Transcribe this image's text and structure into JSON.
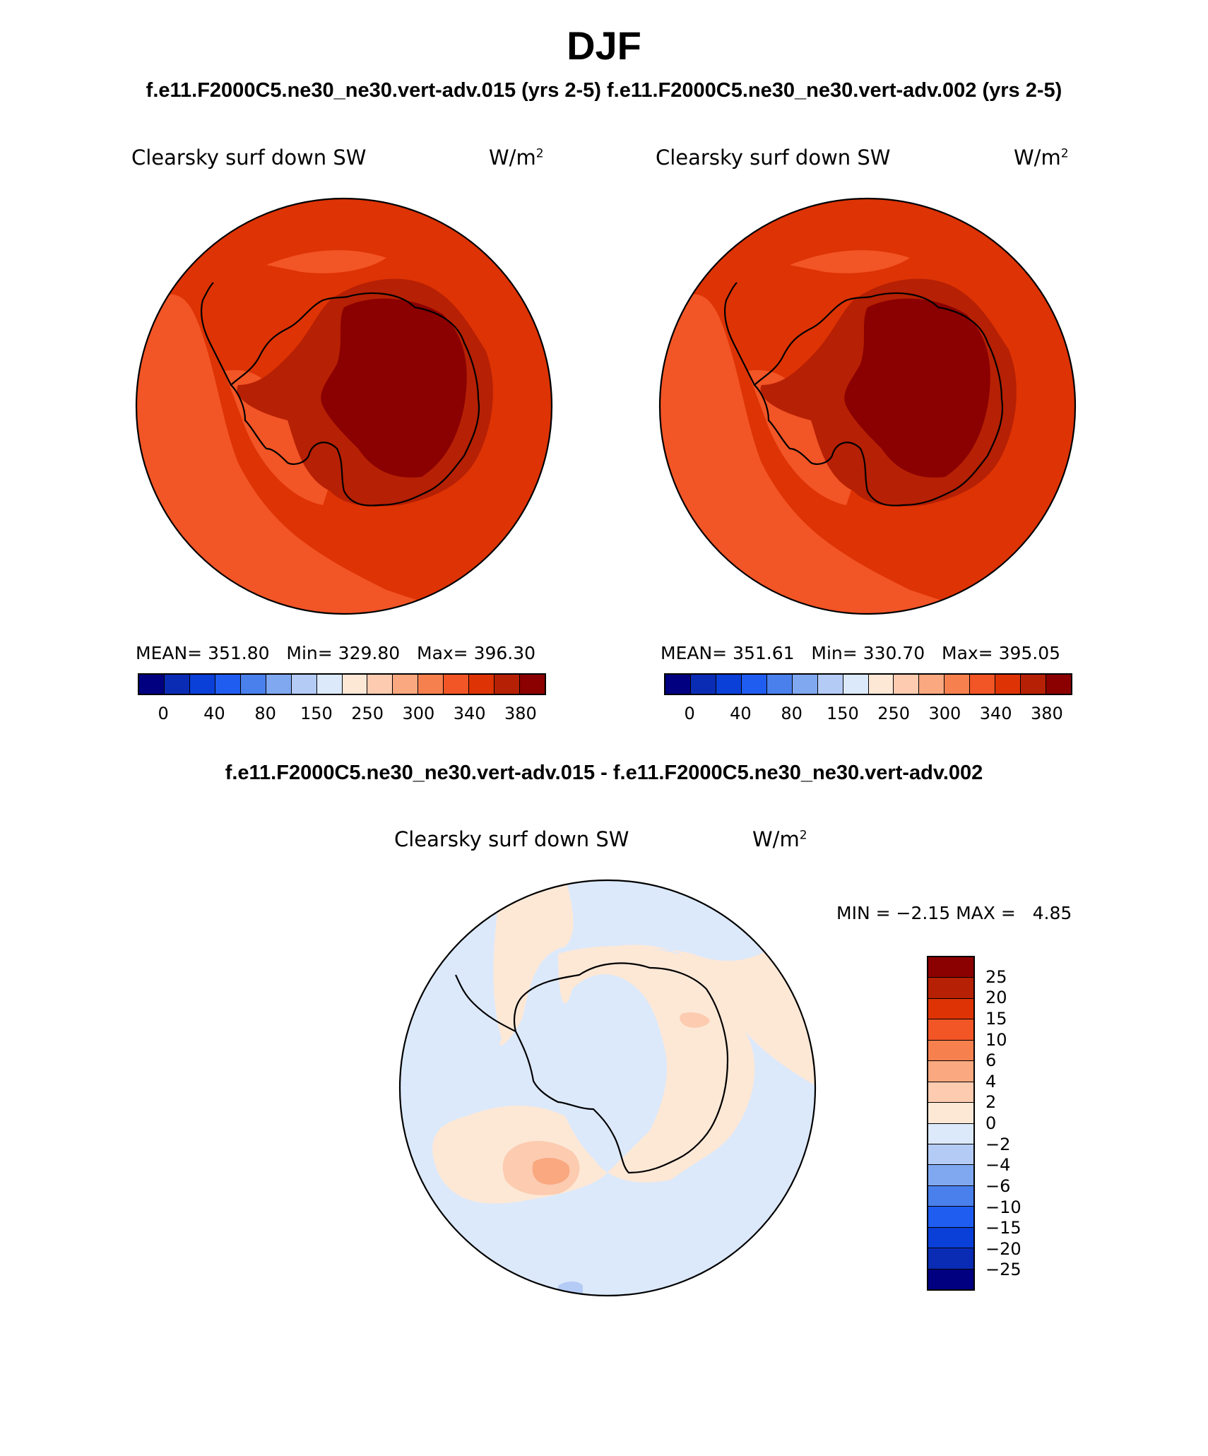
{
  "header": {
    "season": "DJF",
    "case_titles": "f.e11.F2000C5.ne30_ne30.vert-adv.015 (yrs 2-5) f.e11.F2000C5.ne30_ne30.vert-adv.002 (yrs 2-5)",
    "diff_title": "f.e11.F2000C5.ne30_ne30.vert-adv.015 - f.e11.F2000C5.ne30_ne30.vert-adv.002"
  },
  "panels": [
    {
      "variable": "Clearsky surf down SW",
      "units": "W/m",
      "units_exp": "2",
      "mean_label": "MEAN=",
      "mean": "351.80",
      "min_label": "Min=",
      "min": "329.80",
      "max_label": "Max=",
      "max": "396.30"
    },
    {
      "variable": "Clearsky surf down SW",
      "units": "W/m",
      "units_exp": "2",
      "mean_label": "MEAN=",
      "mean": "351.61",
      "min_label": "Min=",
      "min": "330.70",
      "max_label": "Max=",
      "max": "395.05"
    }
  ],
  "diff_panel": {
    "variable": "Clearsky surf down SW",
    "units": "W/m",
    "units_exp": "2",
    "min_label": "MIN =",
    "min": "−2.15",
    "max_label": "MAX =",
    "max": "4.85"
  },
  "colorbar_abs": {
    "colors": [
      "#000080",
      "#0a2cb4",
      "#0a3fd8",
      "#1f5cf0",
      "#4a80ec",
      "#80a8f0",
      "#b4cbf6",
      "#dce9fb",
      "#fde8d6",
      "#fccbb0",
      "#f9a87f",
      "#f7804f",
      "#f25526",
      "#de3304",
      "#b62004",
      "#8b0000"
    ],
    "labels": [
      "0",
      "40",
      "80",
      "150",
      "250",
      "300",
      "340",
      "380"
    ]
  },
  "colorbar_diff": {
    "colors": [
      "#8b0000",
      "#b62004",
      "#de3304",
      "#f25526",
      "#f7804f",
      "#f9a87f",
      "#fccbb0",
      "#fde8d6",
      "#dce9fb",
      "#b4cbf6",
      "#80a8f0",
      "#4a80ec",
      "#1f5cf0",
      "#0a3fd8",
      "#0a2cb4",
      "#000080"
    ],
    "labels": [
      "25",
      "20",
      "15",
      "10",
      "6",
      "4",
      "2",
      "0",
      "−2",
      "−4",
      "−6",
      "−10",
      "−15",
      "−20",
      "−25"
    ]
  },
  "map_colors": {
    "level_320_340": "#f25526",
    "level_340_360": "#de3304",
    "level_360_380": "#b62004",
    "level_380_plus": "#8b0000",
    "diff_neg_0_2": "#dce9fb",
    "diff_pos_0_2": "#fde8d6",
    "diff_pos_2_4": "#fccbb0",
    "diff_pos_4_6": "#f9a87f",
    "diff_neg_2_4": "#b4cbf6"
  }
}
